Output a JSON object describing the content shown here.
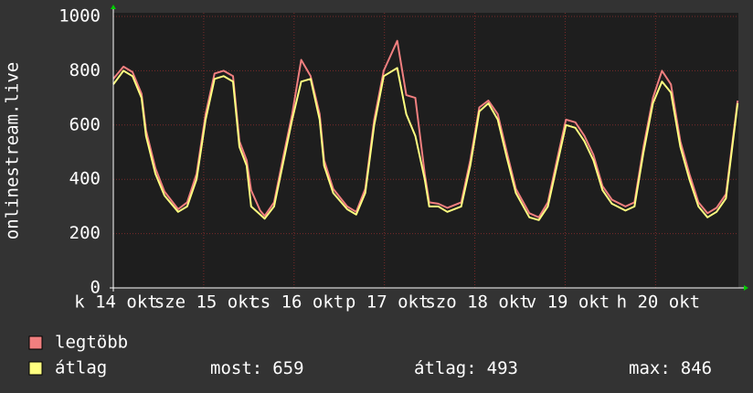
{
  "chart_data": {
    "type": "line",
    "ylabel": "onlinestream.live",
    "x": [
      0,
      2.7,
      5.1,
      7.5,
      8.7,
      11.2,
      13.6,
      17.2,
      19.6,
      22.1,
      24.5,
      26.9,
      29.3,
      31.8,
      33.5,
      35.4,
      36.6,
      39,
      40.2,
      42.7,
      45.1,
      47.5,
      49.9,
      52.4,
      54.8,
      56,
      58.4,
      62.1,
      64.5,
      66.9,
      69.3,
      71.8,
      75.4,
      77.8,
      80.2,
      82.7,
      83.9,
      86.3,
      88.7,
      92.4,
      94.8,
      97.2,
      99.6,
      102.1,
      104.5,
      106.9,
      110.5,
      113,
      115.4,
      117.8,
      120.2,
      122.7,
      125.1,
      127.5,
      129.9,
      132.4,
      136,
      138.4,
      140.8,
      143.3,
      145.7,
      148.1,
      150.6,
      153,
      155.4,
      157.8,
      160.2,
      162.7,
      165.8
    ],
    "series": [
      {
        "name": "legtöbb",
        "color": "#f07f7f",
        "values": [
          770,
          815,
          795,
          715,
          580,
          440,
          355,
          290,
          315,
          420,
          640,
          790,
          800,
          780,
          540,
          470,
          360,
          285,
          265,
          315,
          480,
          640,
          840,
          780,
          640,
          470,
          365,
          300,
          280,
          365,
          620,
          800,
          910,
          710,
          700,
          420,
          315,
          310,
          295,
          315,
          470,
          665,
          690,
          640,
          500,
          365,
          275,
          260,
          315,
          470,
          620,
          610,
          560,
          490,
          375,
          325,
          300,
          315,
          520,
          700,
          800,
          750,
          540,
          420,
          315,
          275,
          295,
          345,
          690
        ]
      },
      {
        "name": "átlag",
        "color": "#ffff80",
        "values": [
          750,
          800,
          780,
          700,
          560,
          420,
          340,
          280,
          300,
          400,
          620,
          770,
          780,
          760,
          520,
          450,
          300,
          270,
          255,
          300,
          460,
          620,
          760,
          770,
          620,
          450,
          350,
          290,
          270,
          350,
          600,
          780,
          810,
          640,
          560,
          400,
          300,
          300,
          280,
          300,
          450,
          650,
          680,
          620,
          480,
          350,
          260,
          250,
          300,
          450,
          600,
          590,
          540,
          470,
          360,
          310,
          285,
          300,
          500,
          680,
          760,
          720,
          520,
          400,
          300,
          260,
          280,
          330,
          680
        ]
      }
    ],
    "xlim": [
      0,
      166
    ],
    "xticks": [
      {
        "value": 0,
        "label": "k 14 okt"
      },
      {
        "value": 24,
        "label": "sze 15 okt"
      },
      {
        "value": 48,
        "label": "cs 16 okt"
      },
      {
        "value": 72,
        "label": "p 17 okt"
      },
      {
        "value": 96,
        "label": "szo 18 okt"
      },
      {
        "value": 120,
        "label": "v 19 okt"
      },
      {
        "value": 144,
        "label": "h 20 okt"
      }
    ],
    "ylim": [
      0,
      1000
    ],
    "yticks": [
      0,
      200,
      400,
      600,
      800,
      1000
    ],
    "grid": true,
    "stats": [
      {
        "label": "most:",
        "value": 659
      },
      {
        "label": "átlag:",
        "value": 493
      },
      {
        "label": "max:",
        "value": 846
      }
    ]
  }
}
